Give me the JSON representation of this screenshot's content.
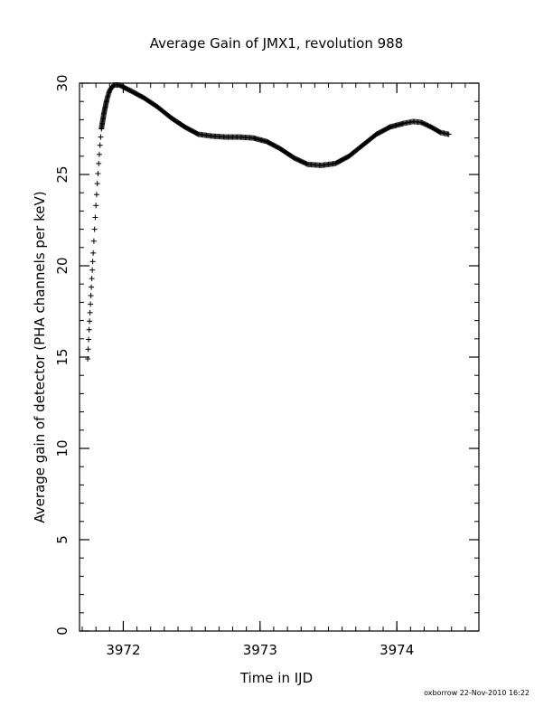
{
  "chart_data": {
    "type": "scatter",
    "title": "Average Gain of JMX1, revolution 988",
    "xlabel": "Time in IJD",
    "ylabel": "Average gain of detector (PHA channels per keV)",
    "xlim": [
      3971.68,
      3974.6
    ],
    "ylim": [
      0,
      30
    ],
    "x_ticks": [
      3972,
      3973,
      3974
    ],
    "x_tick_labels": [
      "3972",
      "3973",
      "3974"
    ],
    "y_ticks": [
      0,
      5,
      10,
      15,
      20,
      25,
      30
    ],
    "y_tick_labels": [
      "0",
      "5",
      "10",
      "15",
      "20",
      "25",
      "30"
    ],
    "marker": "+",
    "grid": false,
    "series": [
      {
        "x": [
          3971.74,
          3971.75,
          3971.76,
          3971.77,
          3971.78,
          3971.79,
          3971.8,
          3971.81,
          3971.82,
          3971.83,
          3971.84,
          3971.86,
          3971.88,
          3971.9,
          3971.93,
          3971.97,
          3972.05,
          3972.15,
          3972.25,
          3972.35,
          3972.45,
          3972.55,
          3972.65,
          3972.75,
          3972.85,
          3972.95,
          3973.05,
          3973.15,
          3973.25,
          3973.35,
          3973.45,
          3973.55,
          3973.65,
          3973.75,
          3973.85,
          3973.95,
          3974.05,
          3974.12,
          3974.18,
          3974.25,
          3974.32,
          3974.38
        ],
        "y": [
          14.9,
          16.5,
          17.9,
          19.3,
          20.7,
          22.0,
          23.3,
          24.5,
          25.6,
          26.6,
          27.5,
          28.4,
          29.1,
          29.6,
          29.9,
          29.9,
          29.6,
          29.2,
          28.7,
          28.1,
          27.6,
          27.2,
          27.1,
          27.05,
          27.05,
          27.0,
          26.8,
          26.4,
          25.9,
          25.55,
          25.5,
          25.6,
          26.0,
          26.6,
          27.2,
          27.6,
          27.8,
          27.9,
          27.85,
          27.6,
          27.3,
          27.2
        ]
      }
    ],
    "footer": "oxborrow 22-Nov-2010 16:22"
  }
}
